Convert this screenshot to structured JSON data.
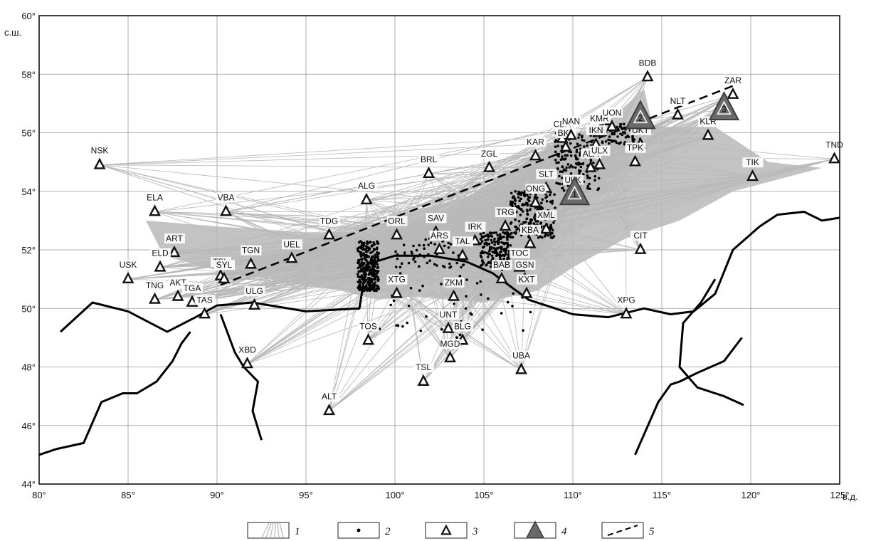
{
  "map": {
    "lat_unit": "с.ш.",
    "lon_unit": "в.д.",
    "lon_ticks": [
      {
        "value": 80,
        "label": "80°"
      },
      {
        "value": 85,
        "label": "85°"
      },
      {
        "value": 90,
        "label": "90°"
      },
      {
        "value": 95,
        "label": "95°"
      },
      {
        "value": 100,
        "label": "100°"
      },
      {
        "value": 105,
        "label": "105°"
      },
      {
        "value": 110,
        "label": "110°"
      },
      {
        "value": 115,
        "label": "115°"
      },
      {
        "value": 120,
        "label": "120°"
      },
      {
        "value": 125,
        "label": "125°"
      }
    ],
    "lat_ticks": [
      {
        "value": 60,
        "label": "60°"
      },
      {
        "value": 58,
        "label": "58°"
      },
      {
        "value": 56,
        "label": "56°"
      },
      {
        "value": 54,
        "label": "54°"
      },
      {
        "value": 52,
        "label": "52°"
      },
      {
        "value": 50,
        "label": "50°"
      },
      {
        "value": 48,
        "label": "48°"
      },
      {
        "value": 46,
        "label": "46°"
      },
      {
        "value": 44,
        "label": "44°"
      }
    ],
    "lon_range": [
      80,
      125
    ],
    "lat_range": [
      44,
      60
    ],
    "grid": true,
    "stations": [
      {
        "code": "NSK",
        "lon": 83.4,
        "lat": 54.9
      },
      {
        "code": "ELA",
        "lon": 86.5,
        "lat": 53.3
      },
      {
        "code": "VBA",
        "lon": 90.5,
        "lat": 53.3
      },
      {
        "code": "ART",
        "lon": 87.6,
        "lat": 51.9
      },
      {
        "code": "ELD",
        "lon": 86.8,
        "lat": 51.4
      },
      {
        "code": "TEL",
        "lon": 90.2,
        "lat": 51.1
      },
      {
        "code": "SYL",
        "lon": 90.4,
        "lat": 51.0
      },
      {
        "code": "TGN",
        "lon": 91.9,
        "lat": 51.5
      },
      {
        "code": "UEL",
        "lon": 94.2,
        "lat": 51.7
      },
      {
        "code": "USK",
        "lon": 85.0,
        "lat": 51.0
      },
      {
        "code": "AKT",
        "lon": 87.8,
        "lat": 50.4
      },
      {
        "code": "TGA",
        "lon": 88.6,
        "lat": 50.2
      },
      {
        "code": "TNG",
        "lon": 86.5,
        "lat": 50.3
      },
      {
        "code": "TAS",
        "lon": 89.3,
        "lat": 49.8
      },
      {
        "code": "ULG",
        "lon": 92.1,
        "lat": 50.1
      },
      {
        "code": "XBD",
        "lon": 91.7,
        "lat": 48.1
      },
      {
        "code": "ALT",
        "lon": 96.3,
        "lat": 46.5
      },
      {
        "code": "TDG",
        "lon": 96.3,
        "lat": 52.5
      },
      {
        "code": "ALG",
        "lon": 98.4,
        "lat": 53.7
      },
      {
        "code": "ORL",
        "lon": 100.1,
        "lat": 52.5
      },
      {
        "code": "SAV",
        "lon": 102.3,
        "lat": 52.6
      },
      {
        "code": "ARS",
        "lon": 102.5,
        "lat": 52.0
      },
      {
        "code": "BRL",
        "lon": 101.9,
        "lat": 54.6
      },
      {
        "code": "ZGL",
        "lon": 105.3,
        "lat": 54.8
      },
      {
        "code": "IRK",
        "lon": 104.5,
        "lat": 52.3
      },
      {
        "code": "TRG",
        "lon": 106.2,
        "lat": 52.8
      },
      {
        "code": "TAL",
        "lon": 103.8,
        "lat": 51.8
      },
      {
        "code": "KAR",
        "lon": 107.9,
        "lat": 55.2
      },
      {
        "code": "CBA",
        "lon": 109.4,
        "lat": 55.8
      },
      {
        "code": "BKL",
        "lon": 109.6,
        "lat": 55.5
      },
      {
        "code": "NAN",
        "lon": 109.9,
        "lat": 55.9
      },
      {
        "code": "KMR",
        "lon": 111.5,
        "lat": 56.0
      },
      {
        "code": "UON",
        "lon": 112.2,
        "lat": 56.2
      },
      {
        "code": "IKN",
        "lon": 111.3,
        "lat": 55.6
      },
      {
        "code": "ALA",
        "lon": 111.0,
        "lat": 54.8
      },
      {
        "code": "ULX",
        "lon": 111.5,
        "lat": 54.9
      },
      {
        "code": "UKT",
        "lon": 113.8,
        "lat": 55.6
      },
      {
        "code": "TPK",
        "lon": 113.5,
        "lat": 55.0
      },
      {
        "code": "BDB",
        "lon": 114.2,
        "lat": 57.9
      },
      {
        "code": "NLT",
        "lon": 115.9,
        "lat": 56.6
      },
      {
        "code": "ZAR",
        "lon": 119.0,
        "lat": 57.3
      },
      {
        "code": "KLR",
        "lon": 117.6,
        "lat": 55.9
      },
      {
        "code": "TIK",
        "lon": 120.1,
        "lat": 54.5
      },
      {
        "code": "TND",
        "lon": 124.7,
        "lat": 55.1
      },
      {
        "code": "SLT",
        "lon": 108.5,
        "lat": 54.1
      },
      {
        "code": "ULK",
        "lon": 110.0,
        "lat": 53.9
      },
      {
        "code": "ONG",
        "lon": 107.9,
        "lat": 53.6
      },
      {
        "code": "XML",
        "lon": 108.5,
        "lat": 52.7
      },
      {
        "code": "KBA",
        "lon": 107.6,
        "lat": 52.2
      },
      {
        "code": "TOC",
        "lon": 107.0,
        "lat": 51.4
      },
      {
        "code": "BAB",
        "lon": 106.0,
        "lat": 51.0
      },
      {
        "code": "GSN",
        "lon": 107.3,
        "lat": 51.0
      },
      {
        "code": "KXT",
        "lon": 107.4,
        "lat": 50.5
      },
      {
        "code": "CIT",
        "lon": 113.8,
        "lat": 52.0
      },
      {
        "code": "XTG",
        "lon": 100.1,
        "lat": 50.5
      },
      {
        "code": "ZKM",
        "lon": 103.3,
        "lat": 50.4
      },
      {
        "code": "UNT",
        "lon": 103.0,
        "lat": 49.3
      },
      {
        "code": "BLG",
        "lon": 103.8,
        "lat": 48.9
      },
      {
        "code": "TOS",
        "lon": 98.5,
        "lat": 48.9
      },
      {
        "code": "MGD",
        "lon": 103.1,
        "lat": 48.3
      },
      {
        "code": "TSL",
        "lon": 101.6,
        "lat": 47.5
      },
      {
        "code": "UBA",
        "lon": 107.1,
        "lat": 47.9
      },
      {
        "code": "XPG",
        "lon": 113.0,
        "lat": 49.8
      }
    ],
    "big_stations": [
      {
        "num": "1",
        "lon": 110.1,
        "lat": 53.9
      },
      {
        "num": "2",
        "lon": 113.8,
        "lat": 56.5
      },
      {
        "num": "3",
        "lon": 118.5,
        "lat": 56.8
      }
    ],
    "legend": [
      {
        "key": "rays",
        "label": "1",
        "icon": "ray-lines-icon"
      },
      {
        "key": "epicenter",
        "label": "2",
        "icon": "dot-icon"
      },
      {
        "key": "station",
        "label": "3",
        "icon": "triangle-icon"
      },
      {
        "key": "network",
        "label": "4",
        "icon": "large-triangle-icon"
      },
      {
        "key": "line",
        "label": "5",
        "icon": "dashed-line-icon"
      }
    ],
    "colors": {
      "ray": "#b8b8b8",
      "station": "#111111",
      "network": "#6a6a6a",
      "border": "#000000",
      "grid": "#9a9a9a"
    }
  }
}
